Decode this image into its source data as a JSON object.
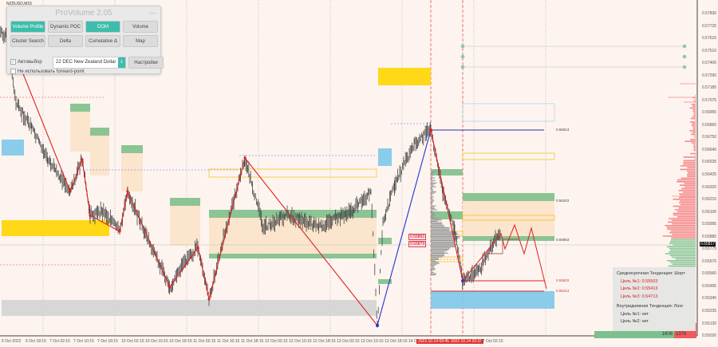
{
  "symbol": "NZDUSD,M15",
  "panel": {
    "title": "ProVolume 2.05",
    "minimize": "—",
    "buttons": [
      {
        "label": "Volume Profile",
        "active": true
      },
      {
        "label": "Dynamic POC",
        "active": false
      },
      {
        "label": "DOM",
        "active": true
      },
      {
        "label": "Volume",
        "active": false
      },
      {
        "label": "Cluster Search",
        "active": false
      },
      {
        "label": "Delta",
        "active": false
      },
      {
        "label": "Cumulative Δ",
        "active": false
      },
      {
        "label": "Map",
        "active": false
      }
    ],
    "auto_select_label": "Автовыбор",
    "auto_select_checked": true,
    "instrument": "22 DEC New Zealand Dollar",
    "settings_label": "Настройки",
    "forward_point_label": "Не использовать forward-point",
    "forward_point_checked": false,
    "accent": "#3dbdab"
  },
  "price_axis": [
    "0.57830",
    "0.57725",
    "0.57615",
    "0.57510",
    "0.57400",
    "0.57290",
    "0.57185",
    "0.57075",
    "0.56965",
    "0.56860",
    "0.56750",
    "0.56640",
    "0.56535",
    "0.56425",
    "0.56320",
    "0.56210",
    "0.56100",
    "0.55995",
    "0.55885",
    "0.55775",
    "0.55670",
    "0.55560",
    "0.55455",
    "0.55345",
    "0.55235",
    "0.55130",
    "0.55020"
  ],
  "current_price": "0.55817",
  "time_axis": [
    {
      "label": "6 Oct 2022"
    },
    {
      "label": "6 Oct 18:15"
    },
    {
      "label": "7 Oct 02:15"
    },
    {
      "label": "7 Oct 10:15"
    },
    {
      "label": "7 Oct 18:15"
    },
    {
      "label": "10 Oct 02:15"
    },
    {
      "label": "10 Oct 10:15"
    },
    {
      "label": "10 Oct 18:15"
    },
    {
      "label": "11 Oct 02:15"
    },
    {
      "label": "11 Oct 10:15"
    },
    {
      "label": "11 Oct 18:15"
    },
    {
      "label": "12 Oct 02:15"
    },
    {
      "label": "12 Oct 10:15"
    },
    {
      "label": "12 Oct 18:15"
    },
    {
      "label": "13 Oct 02:15"
    },
    {
      "label": "13 Oct 10:15"
    },
    {
      "label": "13 Oct 18:15"
    },
    {
      "label": "14 Oct"
    },
    {
      "label": "2022.10.14 09:45",
      "highlight": true
    },
    {
      "label": "2022.10.14 20:15",
      "highlight": true
    },
    {
      "label": "17 Oct 02:15"
    }
  ],
  "levels": {
    "high": "0.56813",
    "zone_top": "0.56203",
    "zone_bottom": "0.55853",
    "target1": "0.55503",
    "target2": "0.55413",
    "tag1": "0.55893",
    "tag2": "0.55879"
  },
  "info": {
    "mid_trend": "Среднесрочная Тенденция: Шорт",
    "mid_targets": [
      "Цель №1: 0.55503",
      "Цель №2: 0.55413",
      "Цель №3: 0.54713"
    ],
    "intraday_trend": "Внутридневная Тенденция: Лонг",
    "intraday_targets": [
      "Цель №1: нет",
      "Цель №2: нет"
    ]
  },
  "volume_balance": {
    "buy": "1606",
    "sell": "1376",
    "buy_color": "#7cc08e",
    "sell_color": "#f05a5a"
  }
}
